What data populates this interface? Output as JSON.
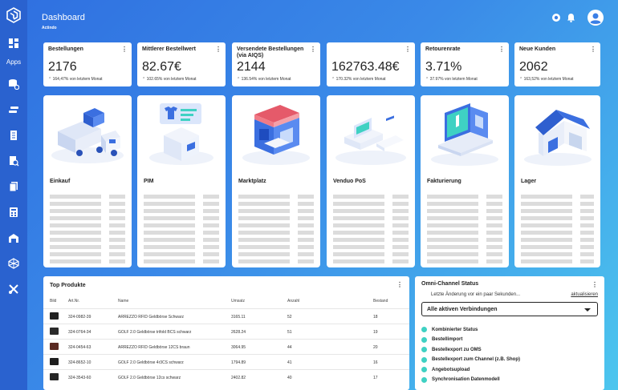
{
  "sidebar": {
    "apps_label": "Apps",
    "icons": [
      "dashboard-icon",
      "database-settings-icon",
      "transfer-icon",
      "document-icon",
      "search-document-icon",
      "copy-document-icon",
      "calculator-icon",
      "warehouse-icon",
      "network-icon",
      "tools-icon"
    ]
  },
  "header": {
    "title": "Dashboard",
    "subtitle": "Actindo"
  },
  "kpis": [
    {
      "label": "Bestellungen",
      "value": "2176",
      "trend": "164,47% von letztem Monat"
    },
    {
      "label": "Mittlerer Bestellwert",
      "value": "82.67€",
      "trend": "102.65% von letztem Monat"
    },
    {
      "label": "Versendete Bestellungen (via AIQS)",
      "value": "2144",
      "trend": "136.54% von letztem Monat"
    },
    {
      "label": "",
      "value": "162763.48€",
      "trend": "170.32% von letztem Monat"
    },
    {
      "label": "Retourenrate",
      "value": "3.71%",
      "trend": "37.97% von letztem Monat"
    },
    {
      "label": "Neue Kunden",
      "value": "2062",
      "trend": "163,52% von letztem Monat"
    }
  ],
  "apps": [
    {
      "label": "Einkauf"
    },
    {
      "label": "PIM"
    },
    {
      "label": "Marktplatz"
    },
    {
      "label": "Venduo PoS"
    },
    {
      "label": "Fakturierung"
    },
    {
      "label": "Lager"
    }
  ],
  "top_products": {
    "title": "Top Produkte",
    "columns": [
      "Bild",
      "Art.Nr.",
      "Name",
      "Umsatz",
      "Anzahl",
      "Bestand"
    ],
    "rows": [
      {
        "art": "324-0982-39",
        "name": "ARREZZO RFID Geldbörse Schwarz",
        "umsatz": "3165.11",
        "anzahl": "52",
        "bestand": "18",
        "thumb_color": "#222222"
      },
      {
        "art": "324-0764-34",
        "name": "GOLF 2.0 Geldbörse trifold BCS schwarz",
        "umsatz": "2628.24",
        "anzahl": "51",
        "bestand": "19",
        "thumb_color": "#2a2a2a"
      },
      {
        "art": "324-0454-63",
        "name": "ARREZZO RFID Geldbörse 12CS braun",
        "umsatz": "3064.95",
        "anzahl": "44",
        "bestand": "20",
        "thumb_color": "#5a2a22"
      },
      {
        "art": "324-8652-10",
        "name": "GOLF 2.0 Geldbörse 4r3CS schwarz",
        "umsatz": "1794.89",
        "anzahl": "41",
        "bestand": "16",
        "thumb_color": "#1e1e1e"
      },
      {
        "art": "324-3543-60",
        "name": "GOLF 2.0 Geldbörse 12cs schwarz",
        "umsatz": "2402.82",
        "anzahl": "40",
        "bestand": "17",
        "thumb_color": "#262626"
      }
    ]
  },
  "omni_channel": {
    "title": "Omni-Channel Status",
    "note": "Letzte Änderung vor ein paar Sekunden...",
    "link": "aktualisieren",
    "select_value": "Alle aktiven Verbindungen",
    "status_color": "#3fd1c3",
    "items": [
      "Kombinierter Status",
      "Bestellimport",
      "Bestellexport zu OMS",
      "Bestellexport zum Channel (z.B. Shop)",
      "Angebotsupload",
      "Synchronisation Datenmodell"
    ]
  }
}
